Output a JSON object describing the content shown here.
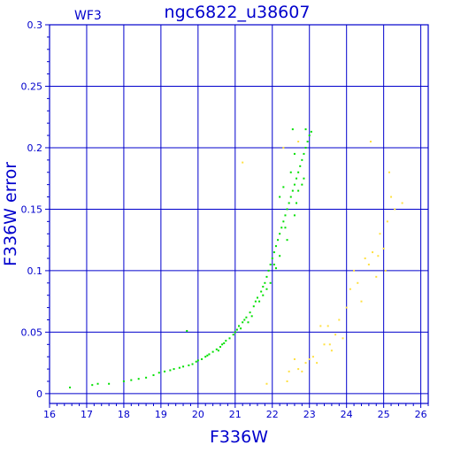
{
  "chart_data": {
    "type": "scatter",
    "title": "ngc6822_u38607",
    "subtitle": "WF3",
    "xlabel": "F336W",
    "ylabel": "F336W error",
    "xlim": [
      16,
      26.2
    ],
    "ylim": [
      -0.008,
      0.3
    ],
    "x_ticks": [
      16,
      17,
      18,
      19,
      20,
      21,
      22,
      23,
      24,
      25,
      26
    ],
    "y_ticks": [
      0,
      0.05,
      0.1,
      0.15,
      0.2,
      0.25,
      0.3
    ],
    "x_tick_labels": [
      "16",
      "17",
      "18",
      "19",
      "20",
      "21",
      "22",
      "23",
      "24",
      "25",
      "26"
    ],
    "y_tick_labels": [
      "0",
      "0.05",
      "0.1",
      "0.15",
      "0.2",
      "0.25",
      "0.3"
    ],
    "grid": true,
    "colors": {
      "axis": "#0000cc",
      "grid": "#0000cc",
      "green": "#00e000",
      "yellow": "#ffe040"
    },
    "series": [
      {
        "color": "#00e000",
        "points": [
          [
            16.55,
            0.005
          ],
          [
            17.15,
            0.007
          ],
          [
            17.3,
            0.008
          ],
          [
            17.6,
            0.008
          ],
          [
            18.0,
            0.01
          ],
          [
            18.2,
            0.011
          ],
          [
            18.4,
            0.012
          ],
          [
            18.6,
            0.013
          ],
          [
            18.8,
            0.015
          ],
          [
            18.95,
            0.017
          ],
          [
            19.1,
            0.018
          ],
          [
            19.25,
            0.019
          ],
          [
            19.35,
            0.02
          ],
          [
            19.5,
            0.021
          ],
          [
            19.6,
            0.022
          ],
          [
            19.7,
            0.051
          ],
          [
            19.75,
            0.023
          ],
          [
            19.85,
            0.024
          ],
          [
            19.95,
            0.026
          ],
          [
            20.0,
            0.027
          ],
          [
            20.1,
            0.028
          ],
          [
            20.2,
            0.03
          ],
          [
            20.3,
            0.032
          ],
          [
            20.4,
            0.034
          ],
          [
            20.5,
            0.036
          ],
          [
            20.6,
            0.038
          ],
          [
            20.7,
            0.041
          ],
          [
            20.75,
            0.043
          ],
          [
            20.85,
            0.045
          ],
          [
            20.95,
            0.048
          ],
          [
            21.0,
            0.05
          ],
          [
            21.05,
            0.052
          ],
          [
            21.1,
            0.055
          ],
          [
            21.2,
            0.058
          ],
          [
            21.3,
            0.062
          ],
          [
            21.4,
            0.066
          ],
          [
            21.5,
            0.071
          ],
          [
            21.55,
            0.075
          ],
          [
            21.6,
            0.078
          ],
          [
            21.7,
            0.083
          ],
          [
            21.75,
            0.087
          ],
          [
            21.8,
            0.09
          ],
          [
            21.85,
            0.095
          ],
          [
            21.9,
            0.1
          ],
          [
            21.95,
            0.105
          ],
          [
            22.0,
            0.11
          ],
          [
            22.05,
            0.115
          ],
          [
            22.1,
            0.12
          ],
          [
            22.15,
            0.125
          ],
          [
            22.2,
            0.13
          ],
          [
            22.25,
            0.135
          ],
          [
            22.3,
            0.14
          ],
          [
            22.35,
            0.145
          ],
          [
            22.4,
            0.15
          ],
          [
            22.45,
            0.155
          ],
          [
            22.5,
            0.16
          ],
          [
            22.55,
            0.165
          ],
          [
            22.6,
            0.17
          ],
          [
            22.65,
            0.175
          ],
          [
            22.7,
            0.18
          ],
          [
            22.75,
            0.185
          ],
          [
            22.8,
            0.19
          ],
          [
            22.85,
            0.195
          ],
          [
            22.9,
            0.2
          ],
          [
            22.95,
            0.205
          ],
          [
            22.9,
            0.215
          ],
          [
            23.0,
            0.21
          ],
          [
            22.6,
            0.195
          ],
          [
            22.5,
            0.18
          ],
          [
            22.3,
            0.168
          ],
          [
            22.55,
            0.215
          ],
          [
            22.2,
            0.16
          ],
          [
            21.65,
            0.075
          ],
          [
            21.45,
            0.063
          ],
          [
            21.35,
            0.058
          ],
          [
            22.85,
            0.175
          ],
          [
            22.7,
            0.165
          ],
          [
            22.6,
            0.145
          ],
          [
            22.4,
            0.125
          ],
          [
            22.2,
            0.112
          ],
          [
            21.95,
            0.09
          ],
          [
            21.75,
            0.08
          ],
          [
            22.1,
            0.102
          ],
          [
            22.35,
            0.135
          ],
          [
            22.65,
            0.155
          ],
          [
            22.8,
            0.17
          ],
          [
            23.05,
            0.213
          ],
          [
            22.05,
            0.105
          ],
          [
            21.85,
            0.085
          ],
          [
            20.55,
            0.035
          ],
          [
            20.25,
            0.031
          ],
          [
            20.65,
            0.04
          ],
          [
            21.15,
            0.053
          ],
          [
            21.25,
            0.06
          ]
        ]
      },
      {
        "color": "#ffe040",
        "points": [
          [
            21.2,
            0.188
          ],
          [
            21.85,
            0.008
          ],
          [
            22.3,
            0.2
          ],
          [
            22.7,
            0.205
          ],
          [
            22.4,
            0.01
          ],
          [
            22.45,
            0.018
          ],
          [
            22.6,
            0.028
          ],
          [
            22.7,
            0.02
          ],
          [
            22.8,
            0.018
          ],
          [
            22.9,
            0.025
          ],
          [
            23.0,
            0.028
          ],
          [
            23.1,
            0.03
          ],
          [
            23.2,
            0.025
          ],
          [
            23.3,
            0.055
          ],
          [
            23.4,
            0.04
          ],
          [
            23.5,
            0.055
          ],
          [
            23.6,
            0.035
          ],
          [
            23.7,
            0.048
          ],
          [
            23.8,
            0.06
          ],
          [
            23.9,
            0.045
          ],
          [
            24.0,
            0.07
          ],
          [
            24.1,
            0.085
          ],
          [
            24.2,
            0.1
          ],
          [
            24.3,
            0.09
          ],
          [
            24.4,
            0.075
          ],
          [
            24.5,
            0.11
          ],
          [
            24.6,
            0.105
          ],
          [
            24.7,
            0.115
          ],
          [
            24.8,
            0.095
          ],
          [
            24.9,
            0.13
          ],
          [
            25.0,
            0.118
          ],
          [
            25.1,
            0.14
          ],
          [
            25.15,
            0.18
          ],
          [
            25.2,
            0.16
          ],
          [
            25.3,
            0.15
          ],
          [
            25.5,
            0.155
          ],
          [
            24.65,
            0.205
          ],
          [
            25.05,
            0.1
          ],
          [
            24.85,
            0.112
          ],
          [
            23.55,
            0.04
          ]
        ]
      }
    ]
  }
}
